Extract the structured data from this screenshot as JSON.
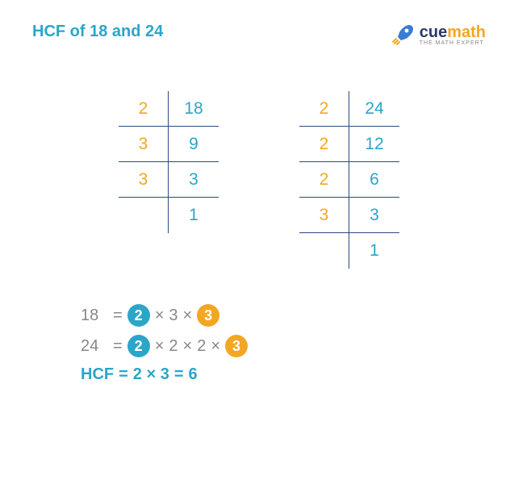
{
  "title": "HCF of 18 and 24",
  "title_color": "#2aa6c9",
  "logo": {
    "brand_prefix": "cue",
    "brand_suffix": "math",
    "prefix_color": "#2b3a6b",
    "suffix_color": "#f5a623",
    "tagline": "THE MATH EXPERT",
    "rocket_color": "#3a7bd5"
  },
  "colors": {
    "divisor": "#f2a722",
    "quotient": "#2aa6c9",
    "border": "#2b4a7a",
    "gray": "#9aa0a6",
    "circle_blue": "#2aa6c9",
    "circle_orange": "#f2a722",
    "hcf_text": "#2aa6c9"
  },
  "table18": {
    "divisors": [
      "2",
      "3",
      "3",
      ""
    ],
    "quotients": [
      "18",
      "9",
      "3",
      "1"
    ]
  },
  "table24": {
    "divisors": [
      "2",
      "2",
      "2",
      "3",
      ""
    ],
    "quotients": [
      "24",
      "12",
      "6",
      "3",
      "1"
    ]
  },
  "eq1": {
    "lhs": "18",
    "terms": [
      {
        "val": "2",
        "style": "circle-blue"
      },
      {
        "val": "3",
        "style": "plain"
      },
      {
        "val": "3",
        "style": "circle-orange"
      }
    ]
  },
  "eq2": {
    "lhs": "24",
    "terms": [
      {
        "val": "2",
        "style": "circle-blue"
      },
      {
        "val": "2",
        "style": "plain"
      },
      {
        "val": "2",
        "style": "plain"
      },
      {
        "val": "3",
        "style": "circle-orange"
      }
    ]
  },
  "hcf": {
    "label": "HCF",
    "expr": "2 × 3",
    "result": "6"
  }
}
